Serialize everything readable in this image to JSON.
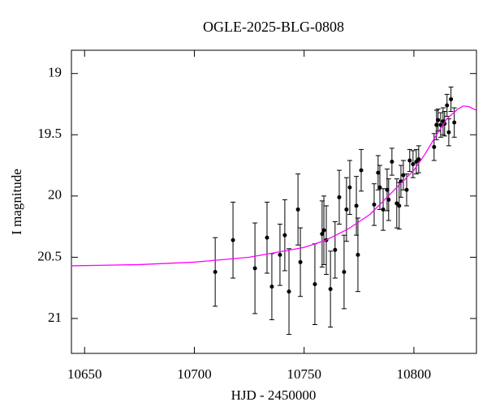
{
  "chart_data": {
    "type": "scatter",
    "title": "OGLE-2025-BLG-0808",
    "x_label": "HJD - 2450000",
    "y_label": "I magnitude",
    "xlim": [
      10644,
      10828.5
    ],
    "ylim": [
      18.81,
      21.285
    ],
    "y_inverted": true,
    "xticks": [
      10650,
      10700,
      10750,
      10800
    ],
    "yticks": [
      19,
      19.5,
      20,
      20.5,
      21
    ],
    "series": [
      {
        "type": "scatter",
        "color": "#000000",
        "x": [
          10709.5,
          10717.6,
          10727.6,
          10733.1,
          10735.3,
          10739.0,
          10741.2,
          10743.1,
          10747.2,
          10748.3,
          10754.9,
          10758.2,
          10759.0,
          10760.1,
          10762.0,
          10764.1,
          10766.0,
          10768.2,
          10769.3,
          10770.8,
          10773.8,
          10774.5,
          10776.0,
          10781.9,
          10783.7,
          10784.5,
          10786.0,
          10787.8,
          10788.5,
          10790.0,
          10792.2,
          10793.3,
          10794.1,
          10795.2,
          10796.7,
          10798.1,
          10799.6,
          10801.1,
          10802.2,
          10809.2,
          10810.3,
          10811.0,
          10812.2,
          10813.3,
          10814.0,
          10815.1,
          10815.9,
          10816.9,
          10818.4
        ],
        "values": [
          20.62,
          20.36,
          20.59,
          20.34,
          20.74,
          20.48,
          20.32,
          20.78,
          20.11,
          20.54,
          20.72,
          20.31,
          20.28,
          20.36,
          20.76,
          20.44,
          20.01,
          20.62,
          20.11,
          19.93,
          20.08,
          20.48,
          19.79,
          20.07,
          19.81,
          19.93,
          20.11,
          19.95,
          20.03,
          19.72,
          20.06,
          20.08,
          19.88,
          19.83,
          19.95,
          19.71,
          19.74,
          19.72,
          19.7,
          19.6,
          19.42,
          19.38,
          19.42,
          19.39,
          19.41,
          19.26,
          19.48,
          19.21,
          19.4
        ],
        "errors": [
          0.28,
          0.31,
          0.37,
          0.29,
          0.27,
          0.25,
          0.29,
          0.35,
          0.29,
          0.28,
          0.33,
          0.27,
          0.28,
          0.28,
          0.31,
          0.23,
          0.22,
          0.3,
          0.26,
          0.22,
          0.24,
          0.3,
          0.17,
          0.17,
          0.14,
          0.18,
          0.17,
          0.17,
          0.17,
          0.11,
          0.2,
          0.19,
          0.13,
          0.12,
          0.13,
          0.09,
          0.11,
          0.1,
          0.11,
          0.11,
          0.12,
          0.09,
          0.1,
          0.11,
          0.1,
          0.09,
          0.11,
          0.1,
          0.12
        ]
      },
      {
        "type": "line",
        "color": "#ff00ff",
        "x": [
          10644,
          10675,
          10700,
          10725,
          10750,
          10760,
          10770,
          10780,
          10790,
          10800,
          10805,
          10810,
          10815,
          10820,
          10822.5,
          10825,
          10828.5
        ],
        "values": [
          20.57,
          20.56,
          20.54,
          20.5,
          20.42,
          20.36,
          20.27,
          20.15,
          19.97,
          19.79,
          19.66,
          19.51,
          19.37,
          19.29,
          19.265,
          19.27,
          19.3
        ]
      }
    ]
  }
}
